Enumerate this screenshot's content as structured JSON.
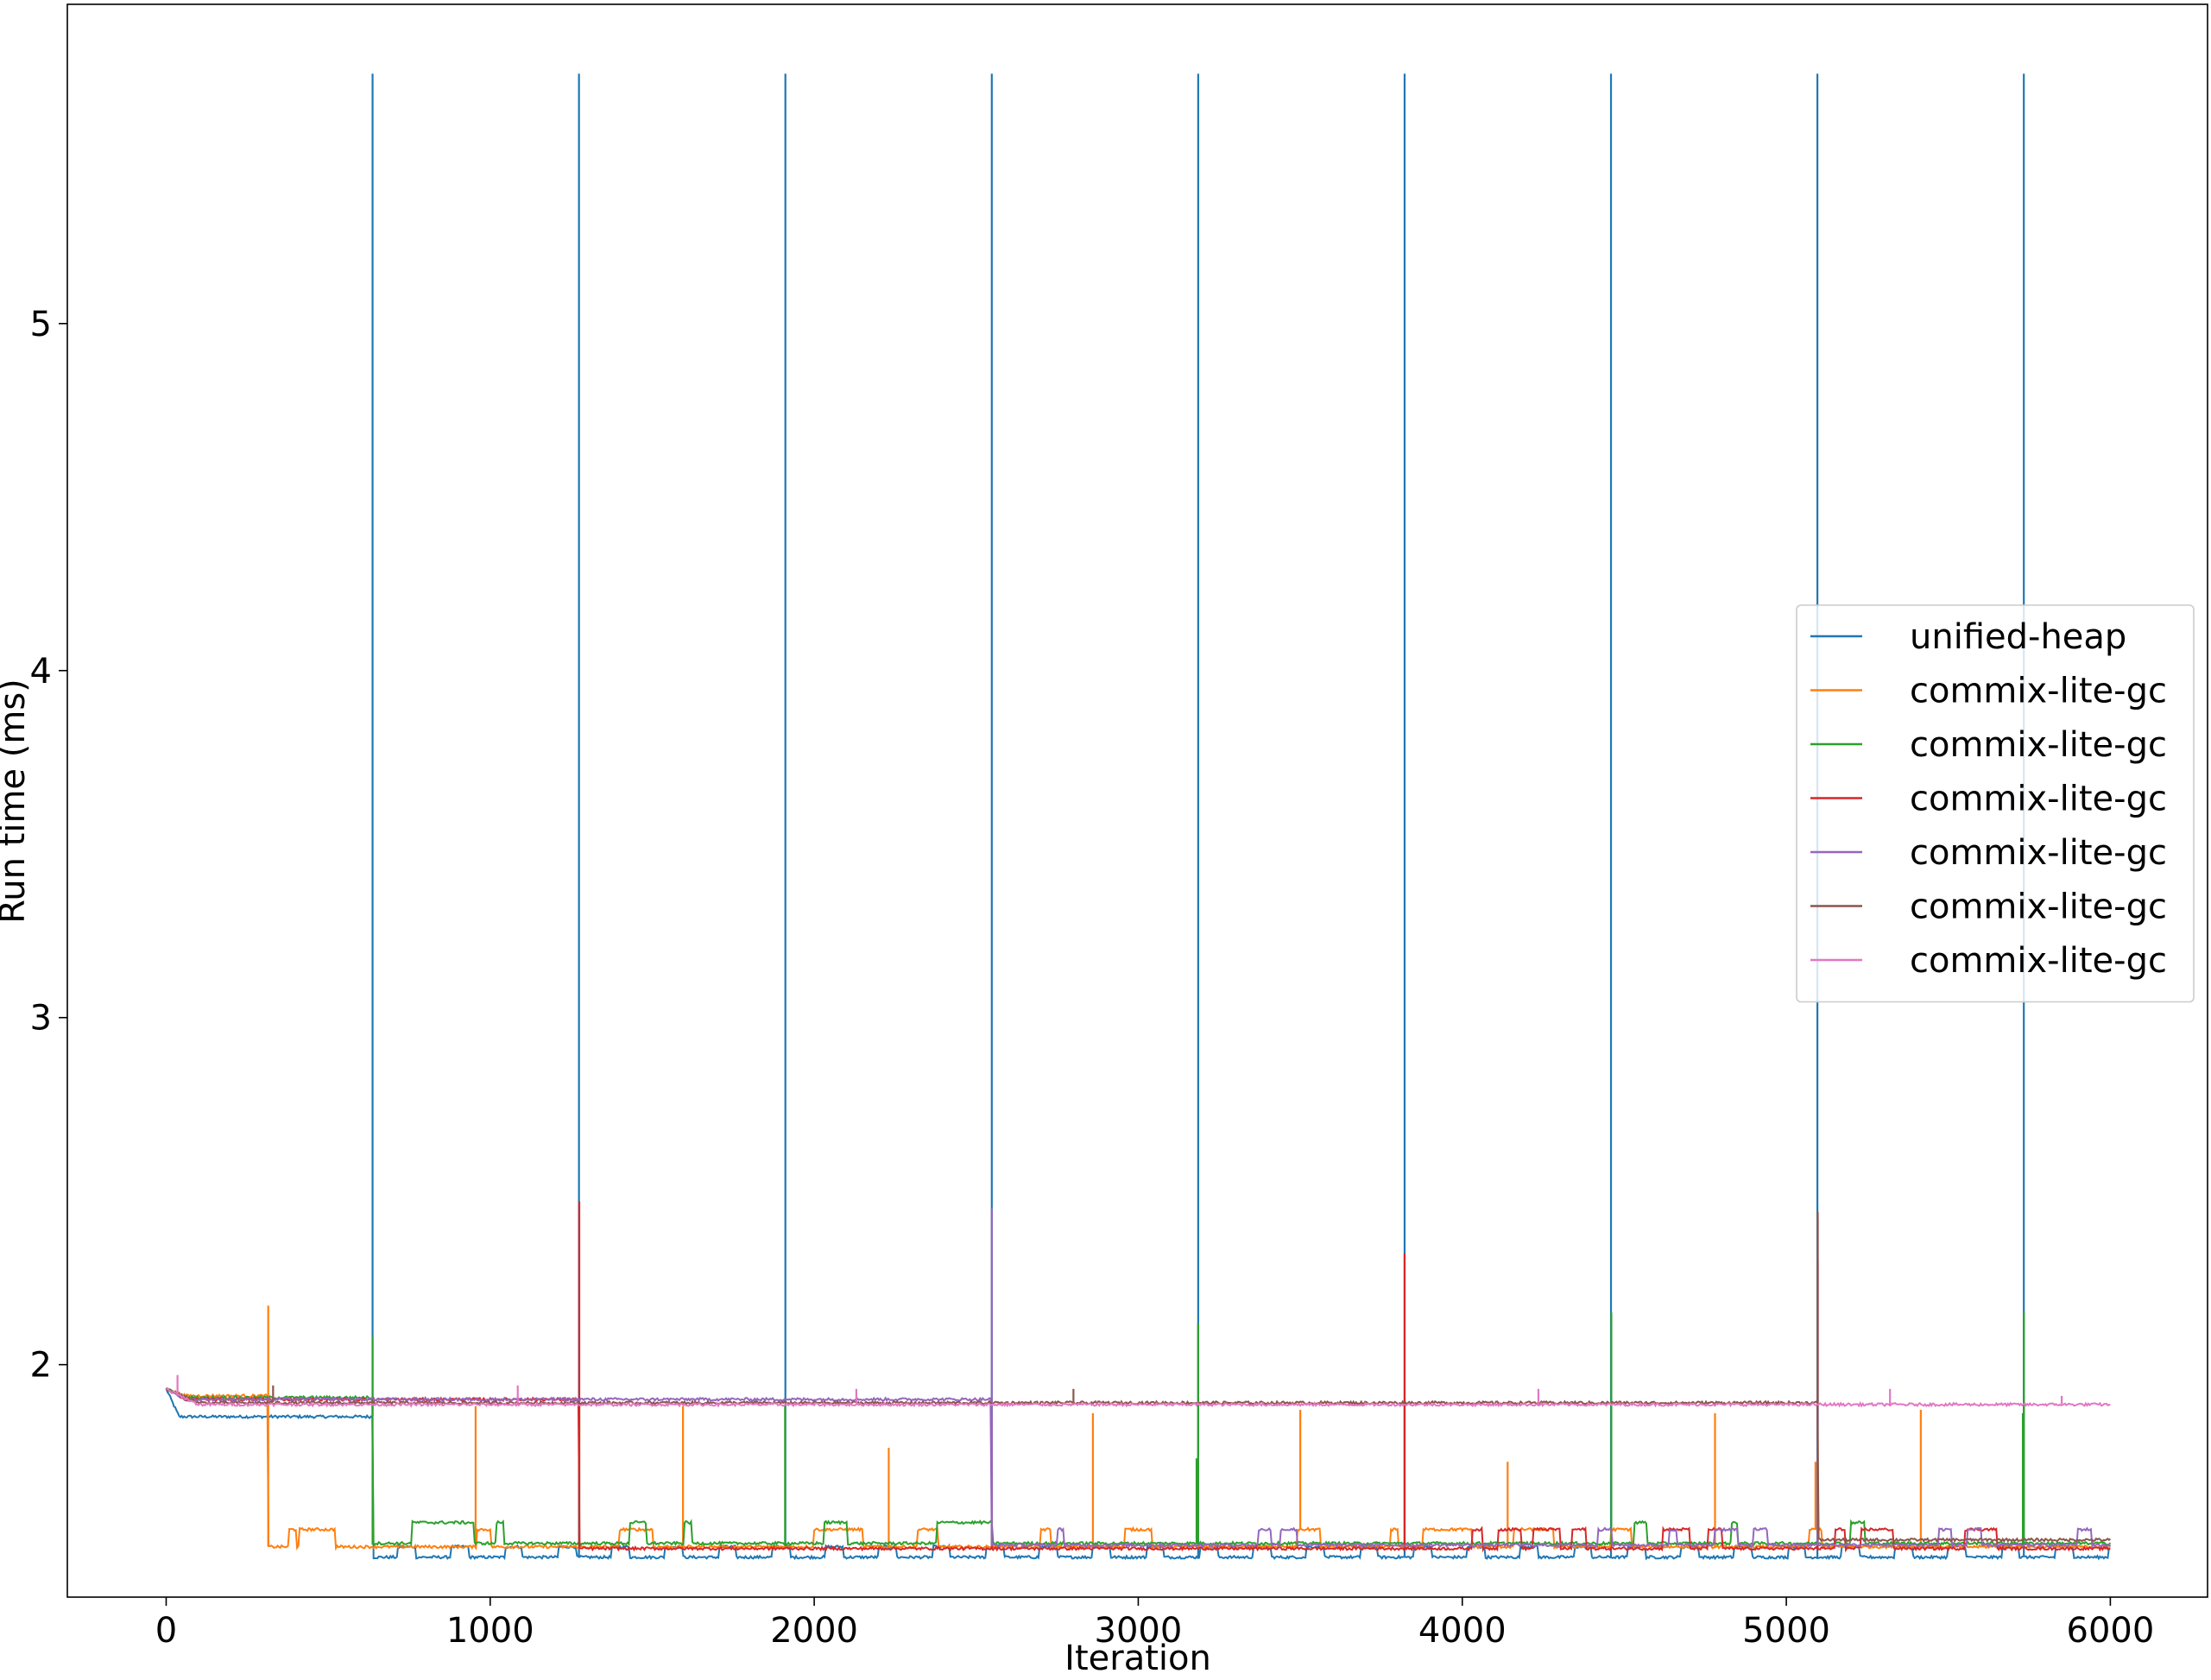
{
  "chart_data": {
    "type": "line",
    "title": "",
    "xlabel": "Iteration",
    "ylabel": "Run time (ms)",
    "xlim": [
      -305,
      6300
    ],
    "ylim": [
      1.33,
      5.92
    ],
    "x_ticks": [
      0,
      1000,
      2000,
      3000,
      4000,
      5000,
      6000
    ],
    "y_ticks": [
      2,
      3,
      4,
      5
    ],
    "grid": false,
    "legend_position": "center-right",
    "series": [
      {
        "name": "unified-heap",
        "color": "#1f77b4",
        "kind": "unified",
        "start": 1.93,
        "warmup_level": 1.85,
        "switch_at": 640,
        "base": 1.445,
        "high": 1.475,
        "spike_period": 637,
        "spike_peak": 5.72
      },
      {
        "name": "commix-lite-gc",
        "color": "#ff7f0e",
        "kind": "lite_low",
        "start": 1.93,
        "pre_level": 1.91,
        "drop_at": 315,
        "base": 1.475,
        "bump": 1.525,
        "bumps": [
          [
            380,
            400
          ],
          [
            410,
            520
          ],
          [
            960,
            1000
          ],
          [
            1400,
            1500
          ],
          [
            2000,
            2150
          ],
          [
            2320,
            2380
          ],
          [
            2700,
            2730
          ],
          [
            2960,
            3040
          ],
          [
            3490,
            3560
          ],
          [
            3780,
            3800
          ],
          [
            3880,
            4030
          ],
          [
            4160,
            4280
          ],
          [
            4460,
            4520
          ],
          [
            5070,
            5110
          ]
        ],
        "spikes": [
          [
            315,
            2.17
          ],
          [
            955,
            1.88
          ],
          [
            1595,
            1.88
          ],
          [
            2230,
            1.76
          ],
          [
            2860,
            1.86
          ],
          [
            3500,
            1.87
          ],
          [
            4140,
            1.72
          ],
          [
            4780,
            1.86
          ],
          [
            5415,
            1.87
          ],
          [
            5090,
            1.72
          ]
        ]
      },
      {
        "name": "commix-lite-gc",
        "color": "#2ca02c",
        "kind": "lite_low",
        "start": 1.93,
        "pre_level": 1.905,
        "drop_at": 637,
        "base": 1.485,
        "bump": 1.545,
        "bumps": [
          [
            760,
            950
          ],
          [
            1020,
            1040
          ],
          [
            1430,
            1480
          ],
          [
            1600,
            1620
          ],
          [
            2030,
            2100
          ],
          [
            2380,
            2550
          ],
          [
            4530,
            4570
          ],
          [
            4830,
            4850
          ],
          [
            5200,
            5240
          ]
        ],
        "spikes": [
          [
            637,
            2.08
          ],
          [
            1275,
            1.9
          ],
          [
            1910,
            1.88
          ],
          [
            2548,
            1.9
          ],
          [
            3185,
            2.12
          ],
          [
            3822,
            1.9
          ],
          [
            4460,
            2.15
          ],
          [
            5097,
            1.9
          ],
          [
            5733,
            2.15
          ],
          [
            3180,
            1.73
          ],
          [
            5730,
            1.86
          ]
        ]
      },
      {
        "name": "commix-lite-gc",
        "color": "#d62728",
        "kind": "lite_low",
        "start": 1.93,
        "pre_level": 1.9,
        "drop_at": 1275,
        "base": 1.47,
        "bump": 1.525,
        "bumps": [
          [
            4030,
            4060
          ],
          [
            4110,
            4180
          ],
          [
            4220,
            4300
          ],
          [
            4340,
            4380
          ],
          [
            4620,
            4700
          ],
          [
            4760,
            4800
          ],
          [
            5150,
            5180
          ],
          [
            5230,
            5330
          ],
          [
            5550,
            5650
          ]
        ],
        "spikes": [
          [
            1275,
            2.47
          ],
          [
            2548,
            1.85
          ],
          [
            3822,
            2.32
          ],
          [
            5097,
            2.3
          ]
        ]
      },
      {
        "name": "commix-lite-gc",
        "color": "#9467bd",
        "kind": "lite_low",
        "start": 1.93,
        "pre_level": 1.9,
        "drop_at": 2548,
        "base": 1.48,
        "bump": 1.525,
        "bumps": [
          [
            2750,
            2770
          ],
          [
            3370,
            3410
          ],
          [
            3440,
            3490
          ],
          [
            4420,
            4460
          ],
          [
            4640,
            4660
          ],
          [
            4780,
            4850
          ],
          [
            4900,
            4940
          ],
          [
            5470,
            5510
          ],
          [
            5560,
            5600
          ],
          [
            5900,
            5940
          ]
        ],
        "spikes": [
          [
            2548,
            2.45
          ],
          [
            5097,
            2.42
          ]
        ]
      },
      {
        "name": "commix-lite-gc",
        "color": "#8c564b",
        "kind": "flat",
        "start": 1.93,
        "level": 1.89,
        "end_at": 5100,
        "after": 1.495,
        "spikes": [
          [
            330,
            1.94
          ],
          [
            2800,
            1.93
          ],
          [
            5097,
            2.44
          ]
        ]
      },
      {
        "name": "commix-lite-gc",
        "color": "#e377c2",
        "kind": "flat",
        "start": 1.93,
        "level": 1.885,
        "end_at": 6000,
        "after": 1.885,
        "spikes": [
          [
            35,
            1.97
          ],
          [
            1085,
            1.94
          ],
          [
            2130,
            1.93
          ],
          [
            4235,
            1.93
          ],
          [
            5320,
            1.93
          ],
          [
            5850,
            1.91
          ]
        ]
      }
    ]
  }
}
